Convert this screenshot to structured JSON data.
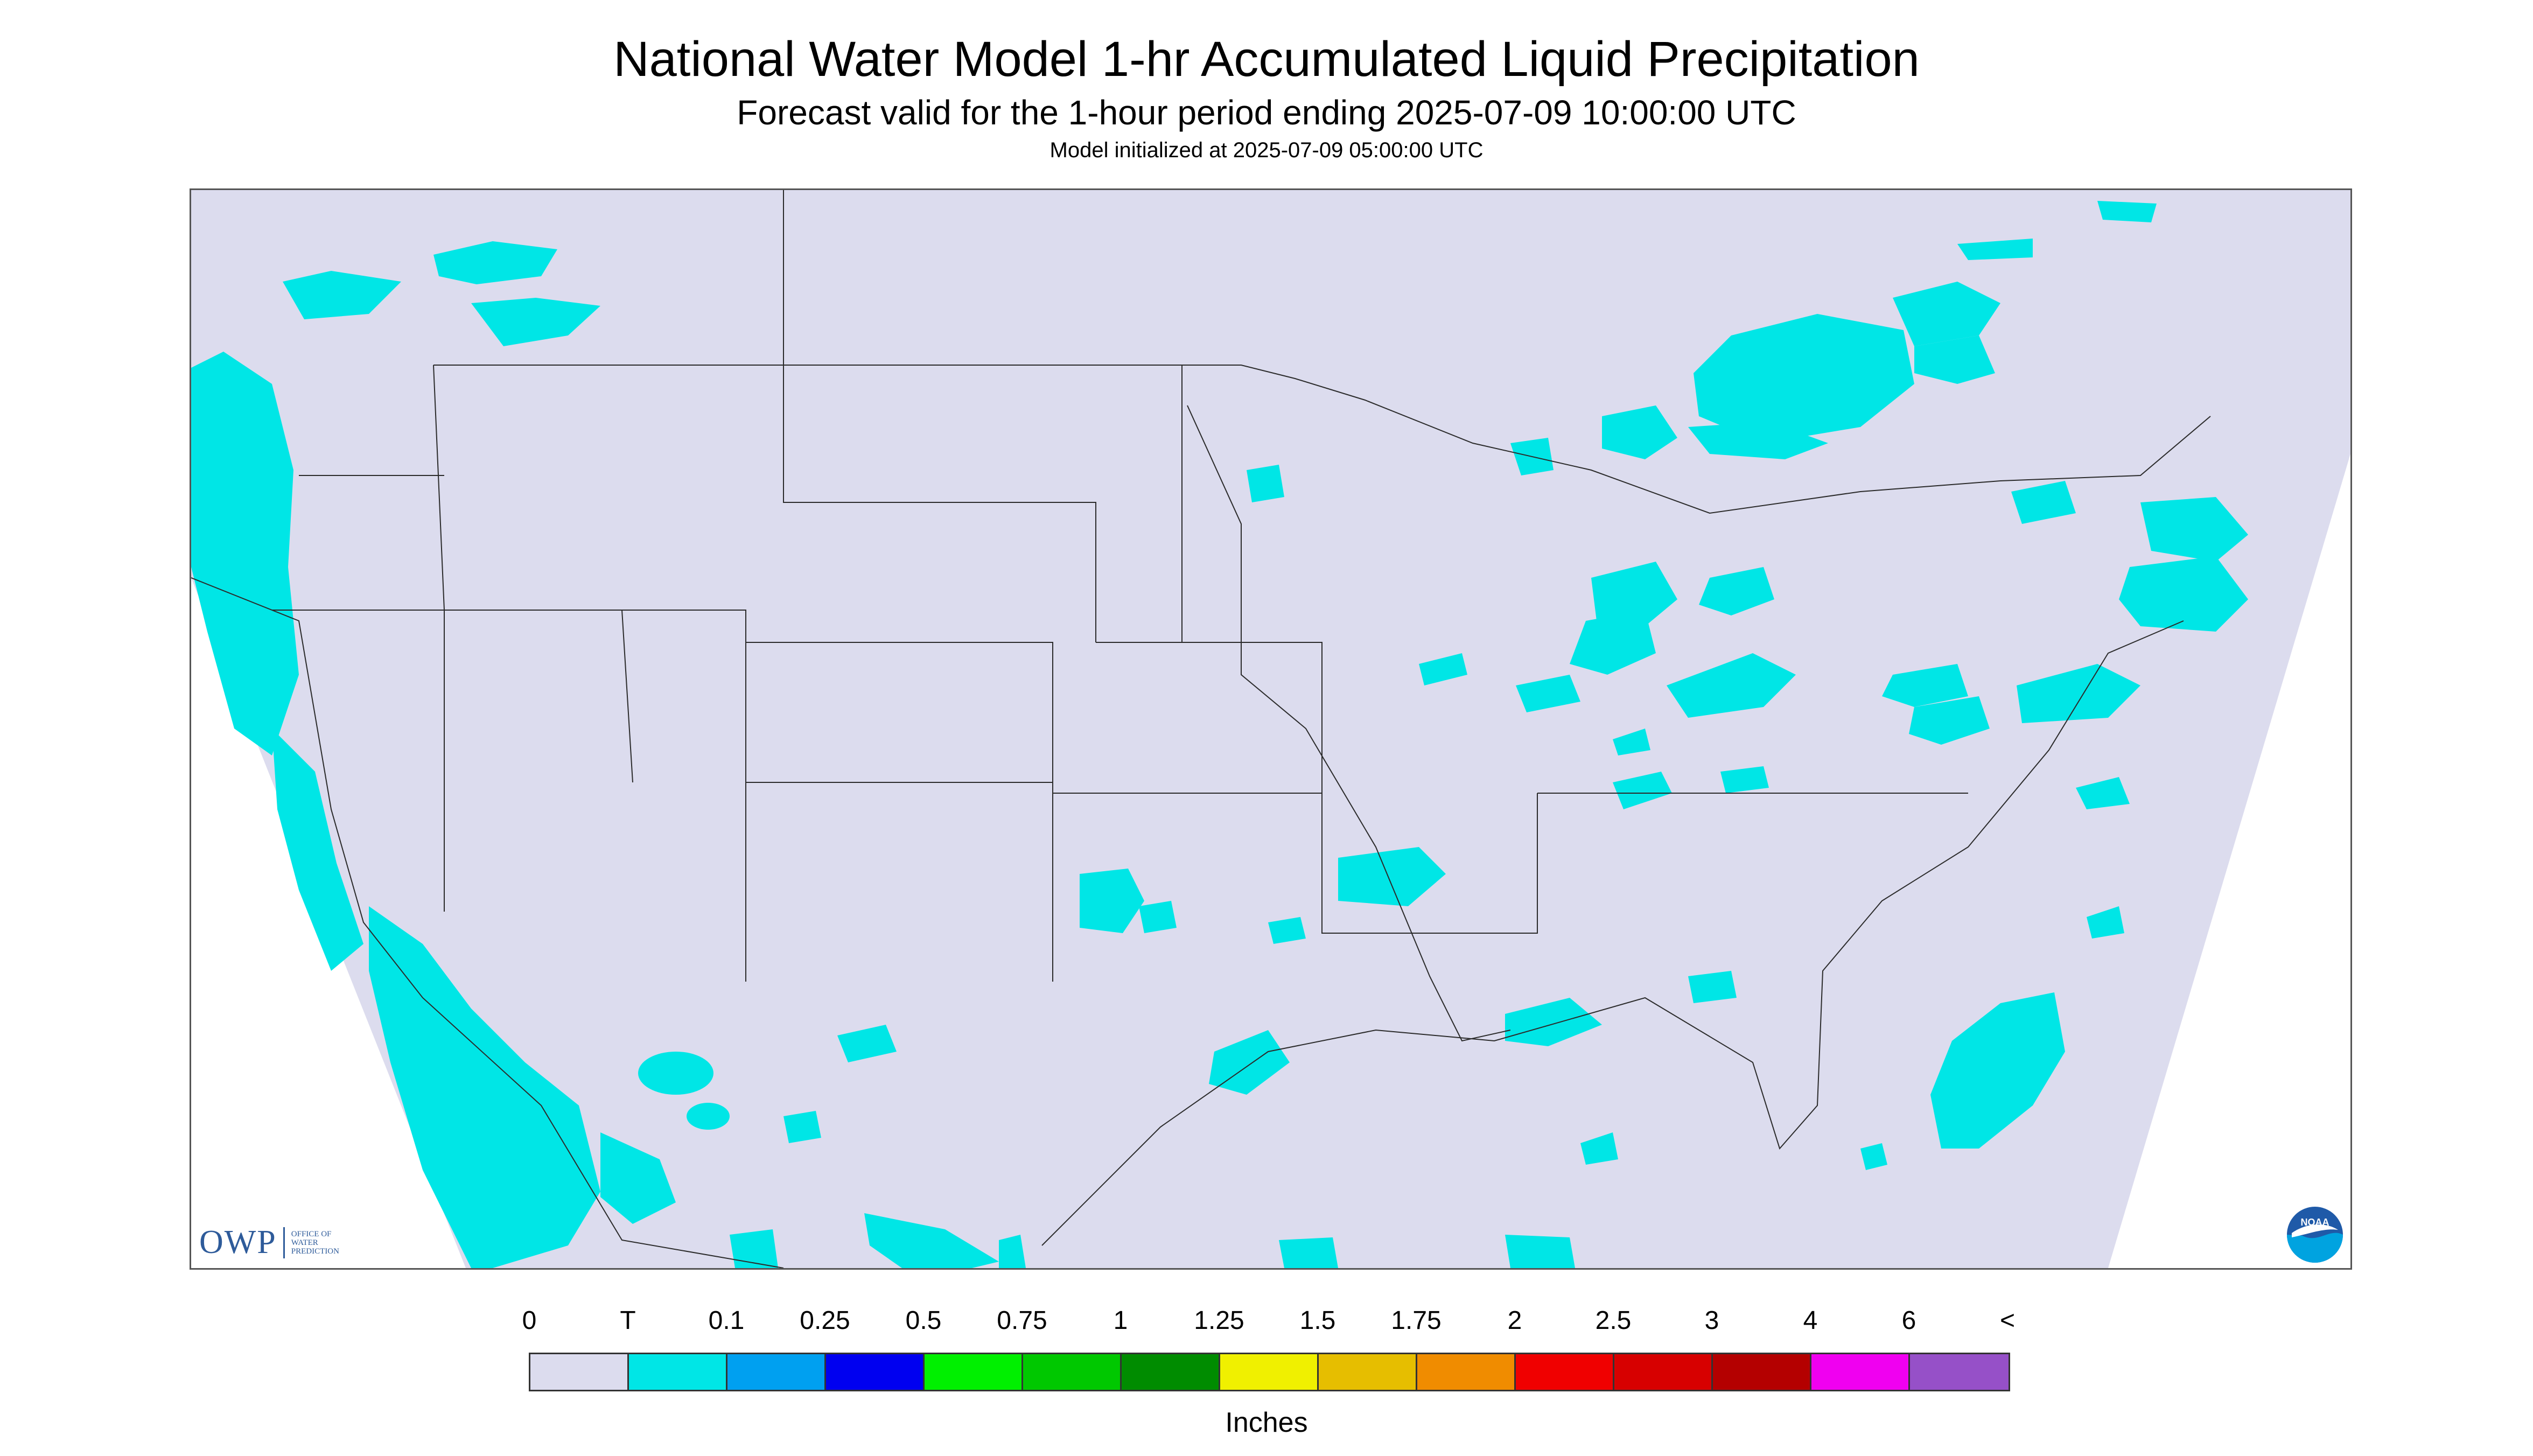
{
  "title": "National Water Model 1-hr Accumulated Liquid Precipitation",
  "subtitle": "Forecast valid for the 1-hour period ending 2025-07-09 10:00:00 UTC",
  "init_line": "Model initialized at 2025-07-09 05:00:00 UTC",
  "logos": {
    "owp_mark": "OWP",
    "owp_text": [
      "Office of",
      "Water",
      "Prediction"
    ],
    "noaa_text": "NOAA"
  },
  "colors": {
    "no_precip": "#dcdcee",
    "trace": "#00e6e6",
    "outside_domain": "#ffffff",
    "boundaries": "#2b2b2b"
  },
  "legend": {
    "tick_labels": [
      "0",
      "T",
      "0.1",
      "0.25",
      "0.5",
      "0.75",
      "1",
      "1.25",
      "1.5",
      "1.75",
      "2",
      "2.5",
      "3",
      "4",
      "6",
      "<"
    ],
    "colors": [
      "#dcdcee",
      "#00e6e6",
      "#00a0f0",
      "#0000f0",
      "#00f000",
      "#00c800",
      "#008c00",
      "#f0f000",
      "#e6be00",
      "#f08c00",
      "#f00000",
      "#d70000",
      "#b40000",
      "#f000f0",
      "#9650c8"
    ],
    "units": "Inches"
  }
}
